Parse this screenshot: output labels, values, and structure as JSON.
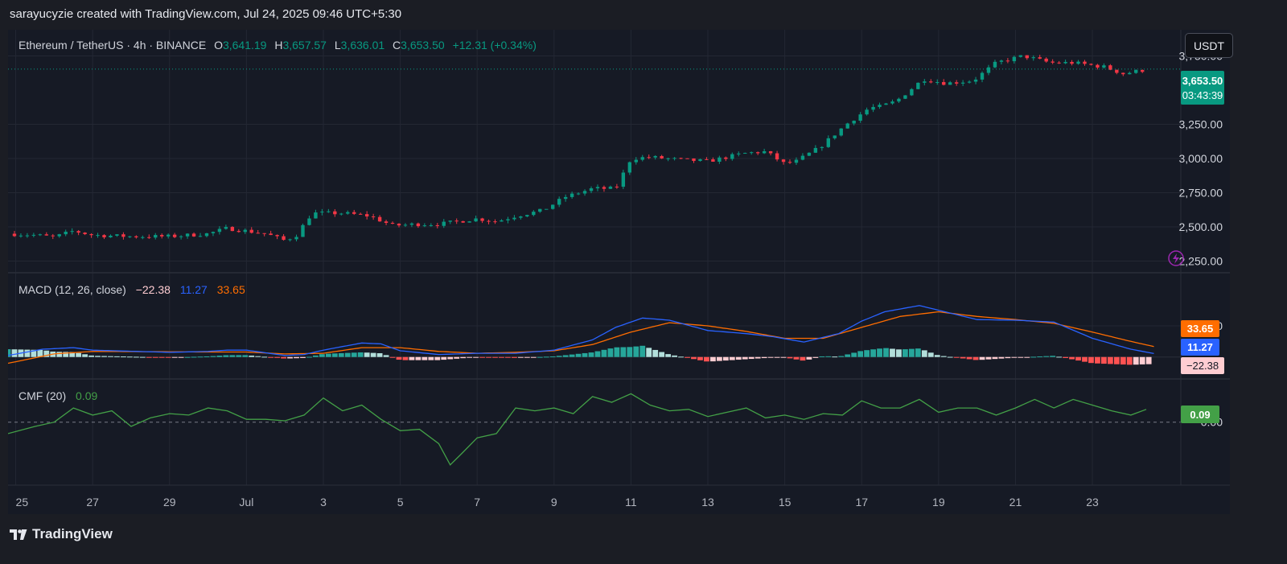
{
  "credit": "sarayucyzie created with TradingView.com, Jul 24, 2025 09:46 UTC+5:30",
  "brand": "TradingView",
  "unit_button": "USDT",
  "colors": {
    "up": "#089981",
    "down": "#f23645",
    "macd": "#2962ff",
    "signal": "#ff6d00",
    "cmf": "#43a047",
    "bg": "#161a25",
    "grid": "#232733"
  },
  "header": {
    "symbol": "Ethereum / TetherUS · 4h · BINANCE",
    "o_label": "O",
    "o": "3,641.19",
    "h_label": "H",
    "h": "3,657.57",
    "l_label": "L",
    "l": "3,636.01",
    "c_label": "C",
    "c": "3,653.50",
    "change": "+12.31 (+0.34%)"
  },
  "price_tag": {
    "price": "3,653.50",
    "countdown": "03:43:39"
  },
  "macd_header": {
    "label": "MACD (12, 26, close)",
    "hist": "−22.38",
    "macd": "11.27",
    "signal": "33.65"
  },
  "cmf_header": {
    "label": "CMF (20)",
    "value": "0.09"
  },
  "chart_data": [
    {
      "type": "candlestick",
      "title": "Ethereum / TetherUS · 4h · BINANCE",
      "y_ticks": [
        "2,250.00",
        "2,500.00",
        "2,750.00",
        "3,000.00",
        "3,250.00",
        "3,750.00"
      ],
      "y_tick_values": [
        2250,
        2500,
        2750,
        3000,
        3250,
        3750
      ],
      "ylim": [
        2200,
        3800
      ],
      "x_ticks": [
        "25",
        "27",
        "29",
        "Jul",
        "3",
        "5",
        "7",
        "9",
        "11",
        "13",
        "15",
        "17",
        "19",
        "21",
        "23"
      ],
      "x_tick_days": [
        -5,
        -3,
        -1,
        1,
        3,
        5,
        7,
        9,
        11,
        13,
        15,
        17,
        19,
        21,
        23
      ],
      "x_range_days": [
        -5.2,
        25.3
      ],
      "close_anchors": [
        [
          -5.2,
          2450
        ],
        [
          -4.5,
          2440
        ],
        [
          -4,
          2425
        ],
        [
          -3.5,
          2470
        ],
        [
          -3,
          2440
        ],
        [
          -2,
          2430
        ],
        [
          -1,
          2430
        ],
        [
          0,
          2450
        ],
        [
          0.5,
          2490
        ],
        [
          1,
          2470
        ],
        [
          1.5,
          2450
        ],
        [
          2,
          2400
        ],
        [
          2.3,
          2440
        ],
        [
          2.7,
          2600
        ],
        [
          3.5,
          2600
        ],
        [
          4.2,
          2580
        ],
        [
          4.8,
          2510
        ],
        [
          5.5,
          2520
        ],
        [
          6,
          2520
        ],
        [
          7,
          2560
        ],
        [
          7.5,
          2540
        ],
        [
          8,
          2580
        ],
        [
          8.7,
          2620
        ],
        [
          9.3,
          2720
        ],
        [
          10,
          2780
        ],
        [
          10.6,
          2780
        ],
        [
          11,
          3000
        ],
        [
          11.5,
          3010
        ],
        [
          12.3,
          2990
        ],
        [
          13,
          2980
        ],
        [
          14,
          3040
        ],
        [
          14.5,
          3050
        ],
        [
          15,
          2960
        ],
        [
          15.3,
          2980
        ],
        [
          15.9,
          3080
        ],
        [
          16.6,
          3250
        ],
        [
          17.2,
          3370
        ],
        [
          17.5,
          3380
        ],
        [
          17.9,
          3420
        ],
        [
          18.6,
          3580
        ],
        [
          19.2,
          3550
        ],
        [
          19.9,
          3570
        ],
        [
          20.5,
          3700
        ],
        [
          21.2,
          3750
        ],
        [
          21.9,
          3700
        ],
        [
          22.5,
          3700
        ],
        [
          23.3,
          3670
        ],
        [
          23.8,
          3620
        ],
        [
          24.4,
          3650
        ]
      ],
      "last_price": 3653.5
    },
    {
      "type": "line+histogram",
      "title": "MACD (12, 26, close)",
      "y_ticks": [
        "100.00"
      ],
      "y_tick_values": [
        100
      ],
      "ylim": [
        -60,
        185
      ],
      "macd_anchors": [
        [
          -5.2,
          5
        ],
        [
          -4.3,
          25
        ],
        [
          -3.5,
          30
        ],
        [
          -3,
          22
        ],
        [
          -1,
          15
        ],
        [
          0,
          18
        ],
        [
          0.5,
          22
        ],
        [
          1,
          22
        ],
        [
          2,
          5
        ],
        [
          2.5,
          8
        ],
        [
          3,
          22
        ],
        [
          4,
          45
        ],
        [
          4.5,
          42
        ],
        [
          5,
          20
        ],
        [
          6,
          8
        ],
        [
          7,
          12
        ],
        [
          8,
          12
        ],
        [
          9,
          22
        ],
        [
          10,
          55
        ],
        [
          10.6,
          95
        ],
        [
          11.3,
          125
        ],
        [
          12,
          118
        ],
        [
          13,
          85
        ],
        [
          14,
          75
        ],
        [
          14.7,
          65
        ],
        [
          15.5,
          48
        ],
        [
          16.4,
          75
        ],
        [
          17,
          115
        ],
        [
          17.6,
          145
        ],
        [
          18.5,
          165
        ],
        [
          19,
          150
        ],
        [
          20,
          120
        ],
        [
          21,
          118
        ],
        [
          22,
          112
        ],
        [
          23,
          60
        ],
        [
          24,
          25
        ],
        [
          24.6,
          11.27
        ]
      ],
      "signal_anchors": [
        [
          -5.2,
          -20
        ],
        [
          -4,
          10
        ],
        [
          -3,
          18
        ],
        [
          0,
          16
        ],
        [
          1,
          16
        ],
        [
          2,
          10
        ],
        [
          3,
          12
        ],
        [
          4,
          30
        ],
        [
          5,
          30
        ],
        [
          6,
          18
        ],
        [
          7,
          12
        ],
        [
          8,
          15
        ],
        [
          9,
          20
        ],
        [
          10,
          40
        ],
        [
          11,
          80
        ],
        [
          12,
          110
        ],
        [
          13,
          100
        ],
        [
          14,
          82
        ],
        [
          15,
          60
        ],
        [
          16,
          60
        ],
        [
          17,
          95
        ],
        [
          18,
          130
        ],
        [
          19,
          145
        ],
        [
          20,
          130
        ],
        [
          21,
          120
        ],
        [
          22,
          108
        ],
        [
          23,
          80
        ],
        [
          24,
          50
        ],
        [
          24.6,
          33.65
        ]
      ],
      "last": {
        "hist": -22.38,
        "macd": 11.27,
        "signal": 33.65
      }
    },
    {
      "type": "line",
      "title": "CMF (20)",
      "y_ticks": [
        "0.00"
      ],
      "y_tick_values": [
        0
      ],
      "ylim": [
        -0.42,
        0.27
      ],
      "cmf_anchors": [
        [
          -5.2,
          -0.08
        ],
        [
          -4.5,
          -0.03
        ],
        [
          -4,
          0
        ],
        [
          -3.5,
          0.1
        ],
        [
          -3,
          0.05
        ],
        [
          -2.5,
          0.08
        ],
        [
          -2,
          -0.03
        ],
        [
          -1.5,
          0.03
        ],
        [
          -1,
          0.06
        ],
        [
          -0.5,
          0.05
        ],
        [
          0,
          0.1
        ],
        [
          0.5,
          0.08
        ],
        [
          1,
          0.02
        ],
        [
          1.5,
          0.02
        ],
        [
          2,
          0.01
        ],
        [
          2.5,
          0.05
        ],
        [
          3,
          0.17
        ],
        [
          3.5,
          0.08
        ],
        [
          4,
          0.12
        ],
        [
          4.5,
          0.02
        ],
        [
          5,
          -0.06
        ],
        [
          5.5,
          -0.05
        ],
        [
          6,
          -0.15
        ],
        [
          6.3,
          -0.3
        ],
        [
          6.6,
          -0.22
        ],
        [
          7,
          -0.11
        ],
        [
          7.5,
          -0.08
        ],
        [
          8,
          0.1
        ],
        [
          8.5,
          0.08
        ],
        [
          9,
          0.1
        ],
        [
          9.5,
          0.06
        ],
        [
          10,
          0.18
        ],
        [
          10.5,
          0.14
        ],
        [
          11,
          0.2
        ],
        [
          11.5,
          0.12
        ],
        [
          12,
          0.08
        ],
        [
          12.5,
          0.09
        ],
        [
          13,
          0.04
        ],
        [
          13.5,
          0.07
        ],
        [
          14,
          0.1
        ],
        [
          14.5,
          0.03
        ],
        [
          15,
          0.05
        ],
        [
          15.5,
          0.02
        ],
        [
          16,
          0.06
        ],
        [
          16.5,
          0.05
        ],
        [
          17,
          0.15
        ],
        [
          17.5,
          0.1
        ],
        [
          18,
          0.1
        ],
        [
          18.5,
          0.16
        ],
        [
          19,
          0.07
        ],
        [
          19.5,
          0.1
        ],
        [
          20,
          0.1
        ],
        [
          20.5,
          0.05
        ],
        [
          21,
          0.1
        ],
        [
          21.5,
          0.16
        ],
        [
          22,
          0.1
        ],
        [
          22.5,
          0.16
        ],
        [
          23,
          0.12
        ],
        [
          23.5,
          0.08
        ],
        [
          24,
          0.05
        ],
        [
          24.4,
          0.09
        ]
      ],
      "last": 0.09
    }
  ]
}
